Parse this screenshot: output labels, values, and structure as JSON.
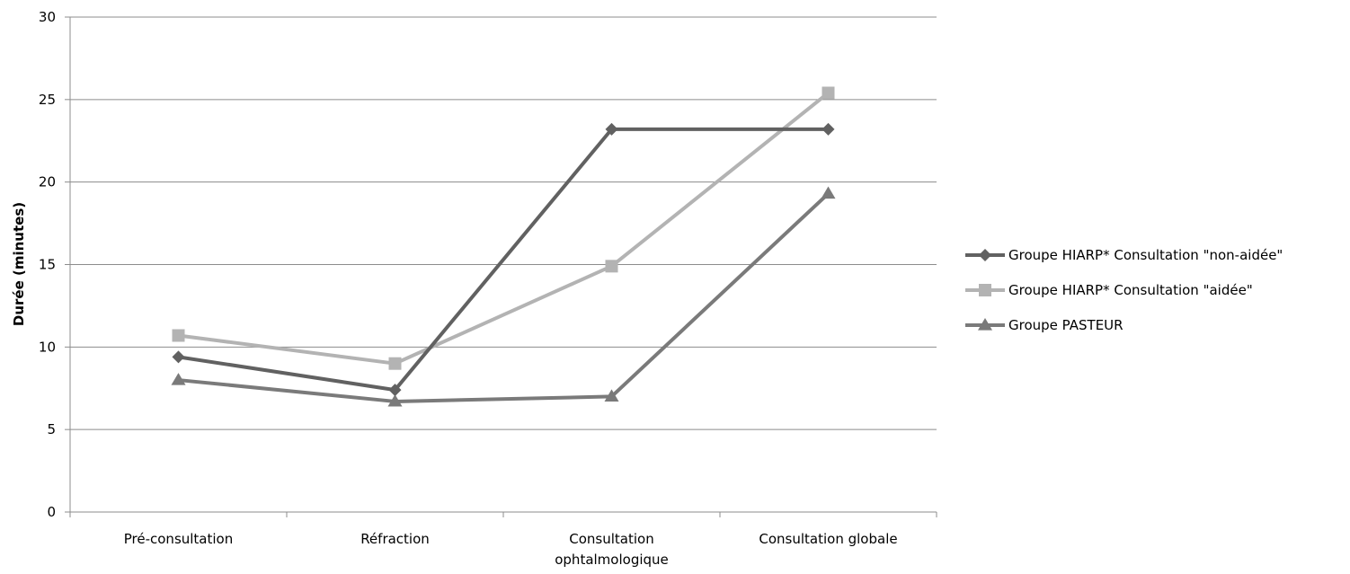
{
  "chart_data": {
    "type": "line",
    "title": "",
    "xlabel": "",
    "ylabel": "Durée (minutes)",
    "ylim": [
      0,
      30
    ],
    "yticks": [
      0,
      5,
      10,
      15,
      20,
      25,
      30
    ],
    "grid": true,
    "legend_position": "right",
    "categories": [
      [
        "Pré-consultation"
      ],
      [
        "Réfraction"
      ],
      [
        "Consultation",
        "ophtalmologique"
      ],
      [
        "Consultation globale"
      ]
    ],
    "series": [
      {
        "name": "Groupe HIARP* Consultation \"non-aidée\"",
        "color": "#616161",
        "marker": "diamond",
        "values": [
          9.4,
          7.4,
          23.2,
          23.2
        ]
      },
      {
        "name": "Groupe HIARP* Consultation \"aidée\"",
        "color": "#b3b3b3",
        "marker": "square",
        "values": [
          10.7,
          9.0,
          14.9,
          25.4
        ]
      },
      {
        "name": "Groupe PASTEUR",
        "color": "#7a7a7a",
        "marker": "triangle",
        "values": [
          8.0,
          6.7,
          7.0,
          19.3
        ]
      }
    ]
  }
}
